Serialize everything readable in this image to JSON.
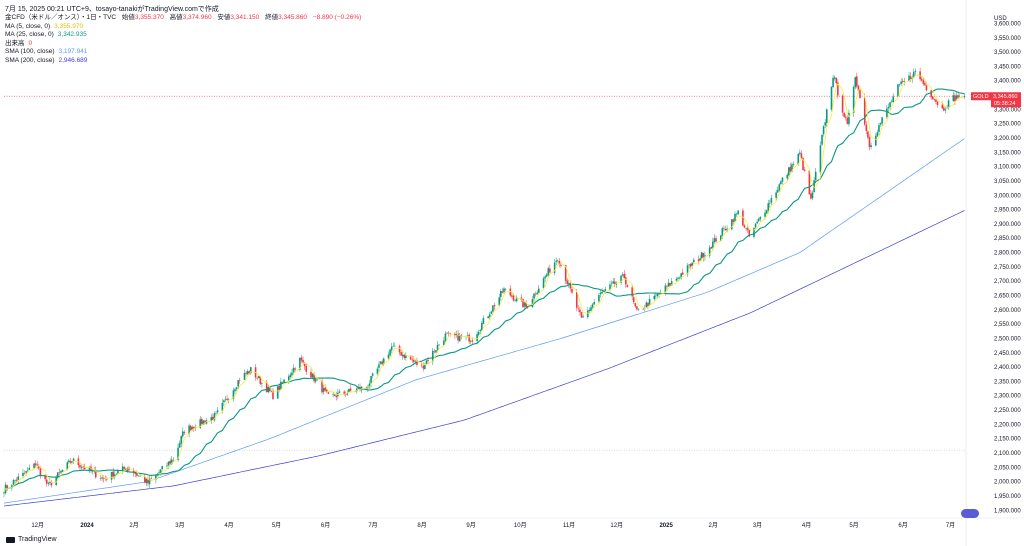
{
  "header": {
    "timestamp_line": "7月 15, 2025 00:21 UTC+9、tosayo-tanakiがTradingView.comで作成",
    "symbol_line": "金CFD（米ドル／オンス）・1日・TVC",
    "ohlc": [
      {
        "label": "始値",
        "value": "3,355.370"
      },
      {
        "label": "高値",
        "value": "3,374.960"
      },
      {
        "label": "安値",
        "value": "3,341.150"
      },
      {
        "label": "終値",
        "value": "3,345.860"
      }
    ],
    "change": "−8.890 (−0.26%)"
  },
  "indicators": [
    {
      "label": "MA (5, close, 0)",
      "value": "3,355.970",
      "color": "#ffeb3b"
    },
    {
      "label": "MA (25, close, 0)",
      "value": "3,342.935",
      "color": "#089981"
    },
    {
      "label": "出来高",
      "value": "0",
      "color": "#f23645"
    },
    {
      "label": "SMA (100, close)",
      "value": "3,197.941",
      "color": "#5b9cf6"
    },
    {
      "label": "SMA (200, close)",
      "value": "2,946.689",
      "color": "#3f3fd9"
    }
  ],
  "price_axis": {
    "currency": "USD",
    "ticks": [
      "3,600.000",
      "3,550.000",
      "3,500.000",
      "3,450.000",
      "3,400.000",
      "3,350.000",
      "3,300.000",
      "3,250.000",
      "3,200.000",
      "3,150.000",
      "3,100.000",
      "3,050.000",
      "3,000.000",
      "2,950.000",
      "2,900.000",
      "2,850.000",
      "2,800.000",
      "2,750.000",
      "2,700.000",
      "2,650.000",
      "2,600.000",
      "2,550.000",
      "2,500.000",
      "2,450.000",
      "2,400.000",
      "2,350.000",
      "2,300.000",
      "2,250.000",
      "2,200.000",
      "2,150.000",
      "2,100.000",
      "2,050.000",
      "2,000.000",
      "1,950.000",
      "1,900.000"
    ]
  },
  "current_price_tag": {
    "symbol": "GOLD",
    "price": "3,345.860",
    "countdown": "05:38:24"
  },
  "time_axis": [
    "12月",
    "2024",
    "2月",
    "3月",
    "4月",
    "5月",
    "6月",
    "7月",
    "8月",
    "9月",
    "10月",
    "11月",
    "12月",
    "2025",
    "2月",
    "3月",
    "4月",
    "5月",
    "6月",
    "7月"
  ],
  "colors": {
    "up": "#089981",
    "down": "#f23645",
    "ma5": "#ffeb3b",
    "ma25": "#089981",
    "sma100": "#5b9cf6",
    "sma200": "#3f3fd9"
  },
  "chart_data": {
    "type": "candlestick",
    "title": "金CFD（米ドル／オンス）・1日・TVC",
    "ylabel": "USD",
    "ylim": [
      1880,
      3640
    ],
    "x_range": [
      "2023-11-15",
      "2025-07-15"
    ],
    "grid": false,
    "price_path_anchors": [
      {
        "date": "2023-11-15",
        "price": 1975
      },
      {
        "date": "2023-12-01",
        "price": 2040
      },
      {
        "date": "2023-12-04",
        "price": 2070
      },
      {
        "date": "2023-12-13",
        "price": 1985
      },
      {
        "date": "2023-12-28",
        "price": 2075
      },
      {
        "date": "2024-01-17",
        "price": 2010
      },
      {
        "date": "2024-02-01",
        "price": 2050
      },
      {
        "date": "2024-02-14",
        "price": 1995
      },
      {
        "date": "2024-03-01",
        "price": 2080
      },
      {
        "date": "2024-03-08",
        "price": 2180
      },
      {
        "date": "2024-03-28",
        "price": 2230
      },
      {
        "date": "2024-04-12",
        "price": 2360
      },
      {
        "date": "2024-04-19",
        "price": 2390
      },
      {
        "date": "2024-05-03",
        "price": 2300
      },
      {
        "date": "2024-05-20",
        "price": 2425
      },
      {
        "date": "2024-06-07",
        "price": 2295
      },
      {
        "date": "2024-07-01",
        "price": 2330
      },
      {
        "date": "2024-07-17",
        "price": 2470
      },
      {
        "date": "2024-08-05",
        "price": 2400
      },
      {
        "date": "2024-08-20",
        "price": 2510
      },
      {
        "date": "2024-09-06",
        "price": 2500
      },
      {
        "date": "2024-09-26",
        "price": 2670
      },
      {
        "date": "2024-10-10",
        "price": 2610
      },
      {
        "date": "2024-10-30",
        "price": 2785
      },
      {
        "date": "2024-11-14",
        "price": 2565
      },
      {
        "date": "2024-11-25",
        "price": 2650
      },
      {
        "date": "2024-12-11",
        "price": 2715
      },
      {
        "date": "2024-12-19",
        "price": 2590
      },
      {
        "date": "2025-01-02",
        "price": 2655
      },
      {
        "date": "2025-01-31",
        "price": 2800
      },
      {
        "date": "2025-02-21",
        "price": 2940
      },
      {
        "date": "2025-02-28",
        "price": 2855
      },
      {
        "date": "2025-03-20",
        "price": 3045
      },
      {
        "date": "2025-04-01",
        "price": 3145
      },
      {
        "date": "2025-04-08",
        "price": 2980
      },
      {
        "date": "2025-04-22",
        "price": 3420
      },
      {
        "date": "2025-05-01",
        "price": 3240
      },
      {
        "date": "2025-05-06",
        "price": 3420
      },
      {
        "date": "2025-05-15",
        "price": 3175
      },
      {
        "date": "2025-06-02",
        "price": 3375
      },
      {
        "date": "2025-06-13",
        "price": 3430
      },
      {
        "date": "2025-06-30",
        "price": 3300
      },
      {
        "date": "2025-07-07",
        "price": 3340
      },
      {
        "date": "2025-07-14",
        "price": 3345.86
      }
    ],
    "sma100_anchors": [
      {
        "date": "2023-11-15",
        "price": 1925
      },
      {
        "date": "2024-02-14",
        "price": 2000
      },
      {
        "date": "2024-05-01",
        "price": 2150
      },
      {
        "date": "2024-08-01",
        "price": 2355
      },
      {
        "date": "2024-11-01",
        "price": 2500
      },
      {
        "date": "2025-02-01",
        "price": 2660
      },
      {
        "date": "2025-04-01",
        "price": 2800
      },
      {
        "date": "2025-07-14",
        "price": 3197.941
      }
    ],
    "sma200_anchors": [
      {
        "date": "2023-11-15",
        "price": 1915
      },
      {
        "date": "2024-03-01",
        "price": 1985
      },
      {
        "date": "2024-06-01",
        "price": 2090
      },
      {
        "date": "2024-09-01",
        "price": 2215
      },
      {
        "date": "2024-12-01",
        "price": 2395
      },
      {
        "date": "2025-03-01",
        "price": 2590
      },
      {
        "date": "2025-07-14",
        "price": 2946.689
      }
    ],
    "last_values": {
      "close": 3345.86,
      "ma5": 3355.97,
      "ma25": 3342.935,
      "sma100": 3197.941,
      "sma200": 2946.689
    },
    "horizontal_lines": [
      {
        "price": 3345.86,
        "style": "dotted",
        "color": "#f23645"
      },
      {
        "price": 2110,
        "style": "dotted",
        "color": "#b2b5be"
      }
    ]
  }
}
